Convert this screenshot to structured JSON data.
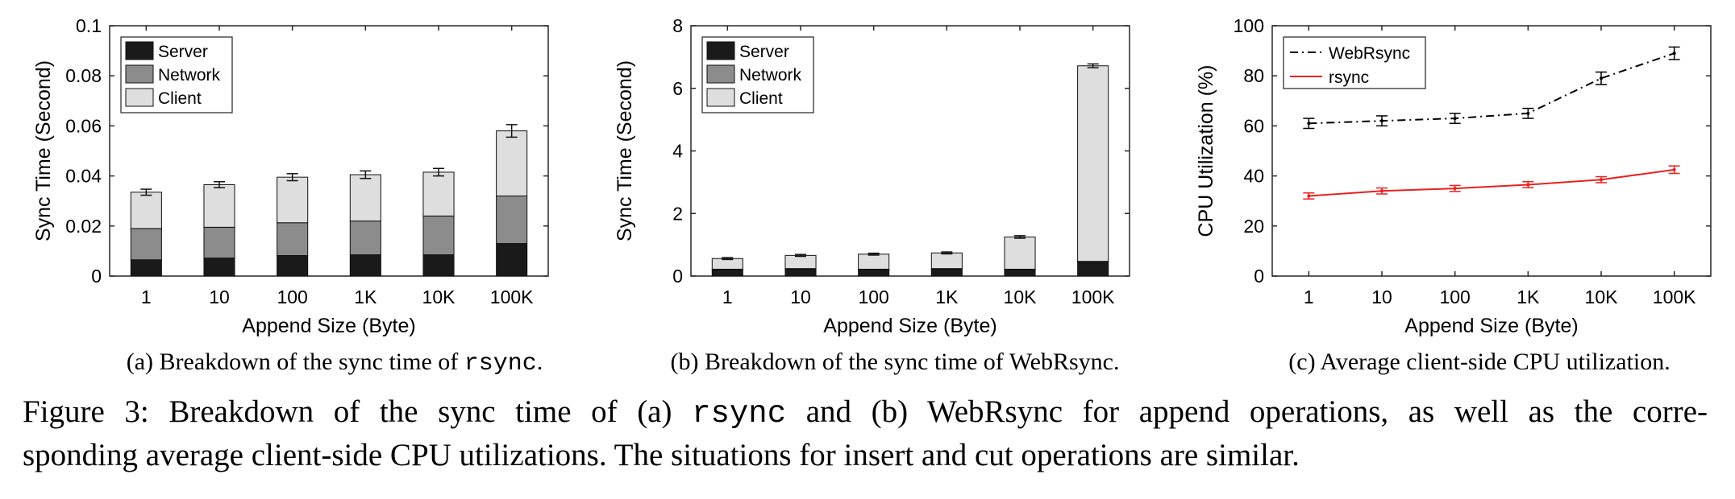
{
  "colors": {
    "server": "#1a1a1a",
    "network": "#8c8c8c",
    "client": "#dedede",
    "webrsync": "#000000",
    "rsync": "#e8211f",
    "axis": "#262626"
  },
  "chart_data": [
    {
      "id": "a",
      "type": "bar",
      "stacked": true,
      "title": "",
      "xlabel": "Append Size (Byte)",
      "ylabel": "Sync Time (Second)",
      "ylim": [
        0,
        0.1
      ],
      "yticks": [
        "0",
        "0.02",
        "0.04",
        "0.06",
        "0.08",
        "0.1"
      ],
      "ytick_values": [
        0,
        0.02,
        0.04,
        0.06,
        0.08,
        0.1
      ],
      "categories": [
        "1",
        "10",
        "100",
        "1K",
        "10K",
        "100K"
      ],
      "legend_position": "top-left",
      "series": [
        {
          "name": "Server",
          "values": [
            0.0065,
            0.0072,
            0.0082,
            0.0085,
            0.0085,
            0.013
          ]
        },
        {
          "name": "Network",
          "values": [
            0.0125,
            0.0123,
            0.0131,
            0.0135,
            0.0155,
            0.019
          ]
        },
        {
          "name": "Client",
          "values": [
            0.0145,
            0.017,
            0.0182,
            0.0185,
            0.0175,
            0.026
          ]
        }
      ],
      "error": [
        0.0012,
        0.0012,
        0.0014,
        0.0015,
        0.0015,
        0.0025
      ]
    },
    {
      "id": "b",
      "type": "bar",
      "stacked": true,
      "title": "",
      "xlabel": "Append Size (Byte)",
      "ylabel": "Sync Time (Second)",
      "ylim": [
        0,
        8
      ],
      "yticks": [
        "0",
        "2",
        "4",
        "6",
        "8"
      ],
      "ytick_values": [
        0,
        2,
        4,
        6,
        8
      ],
      "categories": [
        "1",
        "10",
        "100",
        "1K",
        "10K",
        "100K"
      ],
      "legend_position": "top-left",
      "series": [
        {
          "name": "Server",
          "values": [
            0.2,
            0.22,
            0.2,
            0.22,
            0.2,
            0.45
          ]
        },
        {
          "name": "Network",
          "values": [
            0.02,
            0.02,
            0.02,
            0.02,
            0.02,
            0.02
          ]
        },
        {
          "name": "Client",
          "values": [
            0.34,
            0.42,
            0.48,
            0.5,
            1.03,
            6.25
          ]
        }
      ],
      "error": [
        0.03,
        0.03,
        0.03,
        0.03,
        0.04,
        0.06
      ]
    },
    {
      "id": "c",
      "type": "line",
      "title": "",
      "xlabel": "Append Size (Byte)",
      "ylabel": "CPU Utilization (%)",
      "ylim": [
        0,
        100
      ],
      "yticks": [
        "0",
        "20",
        "40",
        "60",
        "80",
        "100"
      ],
      "ytick_values": [
        0,
        20,
        40,
        60,
        80,
        100
      ],
      "categories": [
        "1",
        "10",
        "100",
        "1K",
        "10K",
        "100K"
      ],
      "legend_position": "top-left",
      "series": [
        {
          "name": "WebRsync",
          "values": [
            61,
            62,
            63,
            65,
            79,
            89
          ],
          "error": [
            2,
            2,
            2,
            2,
            2.5,
            2.5
          ],
          "style": "dash-dot"
        },
        {
          "name": "rsync",
          "values": [
            32,
            34,
            35,
            36.5,
            38.5,
            42.5
          ],
          "error": [
            1.2,
            1.2,
            1.2,
            1.2,
            1.2,
            1.5
          ],
          "style": "solid"
        }
      ]
    }
  ],
  "subcaptions": {
    "a": {
      "prefix": "(a) Breakdown of the sync time of ",
      "code": "rsync",
      "suffix": "."
    },
    "b": {
      "text": "(b) Breakdown of the sync time of WebRsync."
    },
    "c": {
      "text": "(c) Average client-side CPU utilization."
    }
  },
  "figure_caption": {
    "part1": "Figure 3: Breakdown of the sync time of (a) ",
    "code": "rsync",
    "part2": " and (b) WebRsync for append operations, as well as the corre-",
    "line2": "sponding average client-side CPU utilizations. The situations for insert and cut operations are similar."
  }
}
